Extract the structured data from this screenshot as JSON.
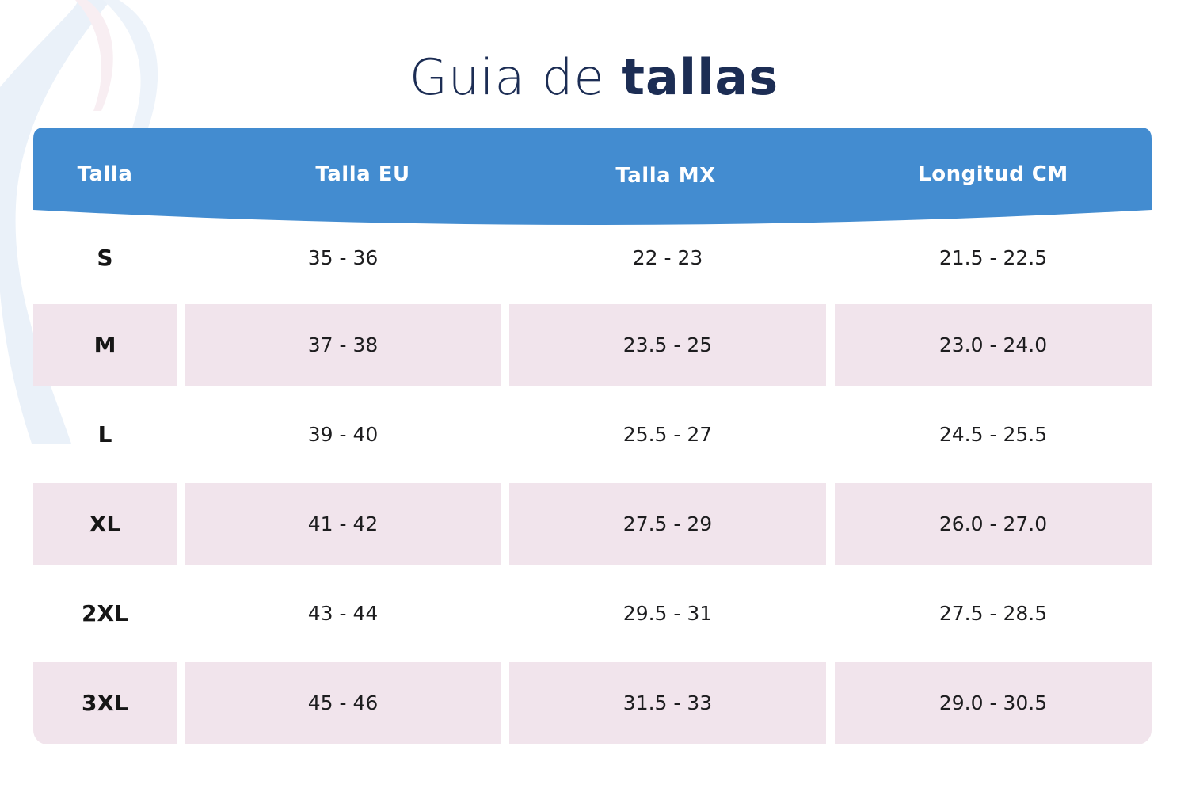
{
  "title": {
    "light": "Guia de",
    "bold": "tallas"
  },
  "colors": {
    "header": "#438cd0",
    "title": "#1c2d54",
    "shaded_row": "#f1e4ec"
  },
  "table": {
    "headers": [
      "Talla",
      "Talla EU",
      "Talla MX",
      "Longitud CM"
    ],
    "rows": [
      {
        "size": "S",
        "eu": "35 - 36",
        "mx": "22 - 23",
        "cm": "21.5 - 22.5",
        "shaded": false
      },
      {
        "size": "M",
        "eu": "37 - 38",
        "mx": "23.5 - 25",
        "cm": "23.0 - 24.0",
        "shaded": true
      },
      {
        "size": "L",
        "eu": "39 - 40",
        "mx": "25.5 - 27",
        "cm": "24.5 - 25.5",
        "shaded": false
      },
      {
        "size": "XL",
        "eu": "41 - 42",
        "mx": "27.5 - 29",
        "cm": "26.0 - 27.0",
        "shaded": true
      },
      {
        "size": "2XL",
        "eu": "43 - 44",
        "mx": "29.5 - 31",
        "cm": "27.5 - 28.5",
        "shaded": false
      },
      {
        "size": "3XL",
        "eu": "45 - 46",
        "mx": "31.5 - 33",
        "cm": "29.0 - 30.5",
        "shaded": true
      }
    ]
  }
}
